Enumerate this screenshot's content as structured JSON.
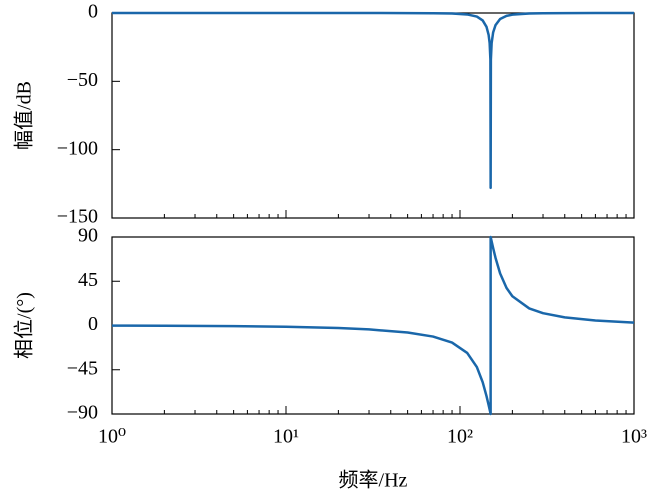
{
  "chart_data": [
    {
      "type": "line",
      "ylabel": "幅值/dB",
      "xscale": "log",
      "xlim": [
        1,
        1000
      ],
      "xticks": [
        1,
        10,
        100,
        1000
      ],
      "ylim": [
        -150,
        0
      ],
      "yticks": [
        0,
        {
          "value": -50,
          "label": "−50"
        },
        {
          "value": -100,
          "label": "−100"
        },
        {
          "value": -150,
          "label": "−150"
        }
      ],
      "x": [
        1,
        2,
        5,
        10,
        20,
        30,
        50,
        70,
        90,
        110,
        125,
        135,
        142,
        146,
        148,
        149.5,
        150,
        150.5,
        152,
        155,
        160,
        170,
        185,
        200,
        250,
        300,
        400,
        600,
        1000
      ],
      "series": [
        {
          "color": "#1a67aa",
          "values": [
            0,
            0,
            0,
            -0.002,
            -0.009,
            -0.021,
            -0.067,
            -0.169,
            -0.405,
            -1.071,
            -2.615,
            -5.433,
            -10.1,
            -15.92,
            -21.9,
            -33.96,
            -128,
            -34.0,
            -22.02,
            -14.28,
            -8.84,
            -4.42,
            -2.1,
            -1.23,
            -0.405,
            -0.21,
            -0.091,
            -0.034,
            -0.011
          ]
        }
      ]
    },
    {
      "type": "line",
      "ylabel": "相位/(°)",
      "xlabel": "频率/Hz",
      "xscale": "log",
      "xlim": [
        1,
        1000
      ],
      "xticks": [
        {
          "value": 1,
          "label": "10⁰"
        },
        {
          "value": 10,
          "label": "10¹"
        },
        {
          "value": 100,
          "label": "10²"
        },
        {
          "value": 1000,
          "label": "10³"
        }
      ],
      "ylim": [
        -90,
        90
      ],
      "yticks": [
        90,
        45,
        0,
        {
          "value": -45,
          "label": "−45"
        },
        {
          "value": -90,
          "label": "−90"
        }
      ],
      "x": [
        1,
        2,
        5,
        10,
        20,
        30,
        50,
        70,
        90,
        110,
        125,
        135,
        142,
        146,
        148,
        149.5,
        149.99,
        150.01,
        152,
        155,
        160,
        170,
        185,
        200,
        250,
        300,
        400,
        600,
        1000
      ],
      "series": [
        {
          "color": "#1a67aa",
          "values": [
            -0.13,
            -0.25,
            -0.64,
            -1.28,
            -2.59,
            -3.97,
            -7.13,
            -11.25,
            -17.35,
            -27.87,
            -42.27,
            -57.66,
            -71.79,
            -80.79,
            -85.39,
            -88.85,
            -89.98,
            89.98,
            85.46,
            78.86,
            68.81,
            53.02,
            38.28,
            29.74,
            17.35,
            12.53,
            8.28,
            5.08,
            2.93
          ]
        }
      ]
    }
  ]
}
